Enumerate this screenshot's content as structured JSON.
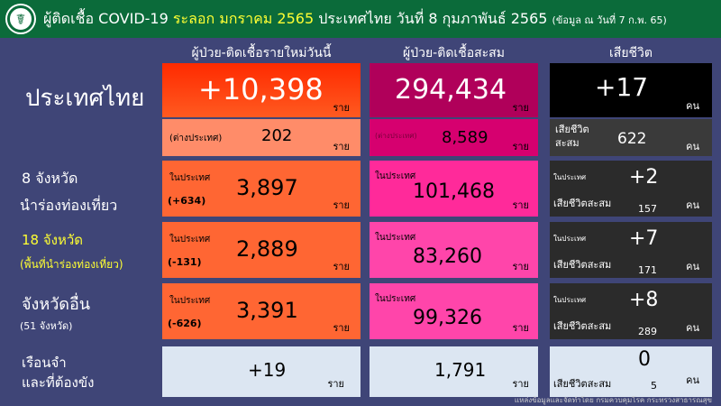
{
  "header": {
    "title_prefix": "ผู้ติดเชื้อ COVID-19",
    "wave": "ระลอก มกราคม 2565",
    "title_mid": "ประเทศไทย  วันที่ 8 กุมภาพันธ์ 2565",
    "note": "(ข้อมูล ณ วันที่ 7 ก.พ. 65)"
  },
  "columns": [
    "ผู้ป่วย-ติดเชื้อรายใหม่วันนี้",
    "ผู้ป่วย-ติดเชื้อสะสม",
    "เสียชีวิต"
  ],
  "national": {
    "label": "ประเทศไทย",
    "new": "+10,398",
    "cumulative": "294,434",
    "deaths": "+17",
    "abroad_label": "(ต่างประเทศ)",
    "abroad_new": "202",
    "abroad_cum": "8,589",
    "deaths_cum_label": "เสียชีวิต\nสะสม",
    "deaths_cum": "622"
  },
  "units": {
    "case": "ราย",
    "person": "คน",
    "domestic": "ในประเทศ",
    "deaths_cum": "เสียชีวิตสะสม"
  },
  "rows": [
    {
      "label1": "8  จังหวัด",
      "label2": "นำร่องท่องเที่ยว",
      "new": "3,897",
      "change": "(+634)",
      "cumulative": "101,468",
      "deaths": "+2",
      "deaths_cum": "157"
    },
    {
      "label1": "18  จังหวัด",
      "label2": "(พื้นที่นำร่องท่องเที่ยว)",
      "new": "2,889",
      "change": "(-131)",
      "cumulative": "83,260",
      "deaths": "+7",
      "deaths_cum": "171"
    },
    {
      "label1": "จังหวัดอื่น",
      "label2": "(51 จังหวัด)",
      "new": "3,391",
      "change": "(-626)",
      "cumulative": "99,326",
      "deaths": "+8",
      "deaths_cum": "289"
    }
  ],
  "prison": {
    "label1": "เรือนจำ",
    "label2": "และที่ต้องขัง",
    "new": "+19",
    "cumulative": "1,791",
    "deaths": "0",
    "deaths_cum": "5"
  },
  "footer": "แหล่งข้อมูลและจัดทำโดย กรมควบคุมโรค กระทรวงสาธารณสุข",
  "colors": {
    "header": "#0b6b3a",
    "background": "#3f4577",
    "new_top": "#ff3300",
    "cum_top": "#b0005a",
    "death_top": "#000000"
  }
}
